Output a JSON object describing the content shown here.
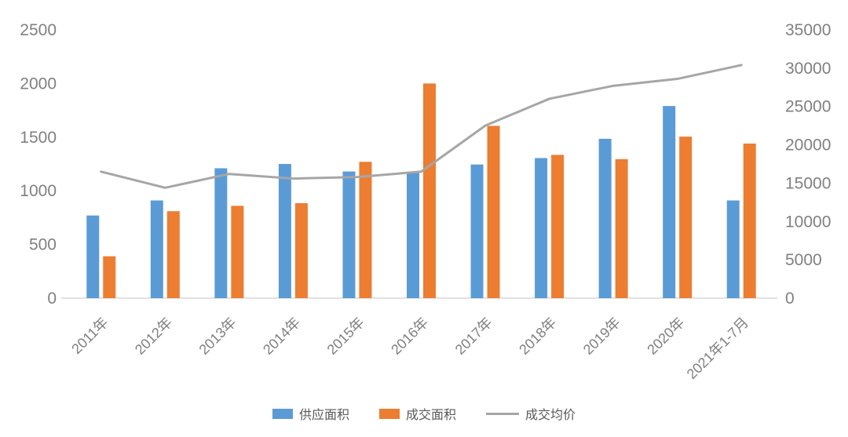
{
  "chart_data": {
    "type": "bar",
    "title": "",
    "xlabel": "",
    "ylabel": "",
    "categories": [
      "2011年",
      "2012年",
      "2013年",
      "2014年",
      "2015年",
      "2016年",
      "2017年",
      "2018年",
      "2019年",
      "2020年",
      "2021年1-7月"
    ],
    "series": [
      {
        "name": "供应面积",
        "type": "bar",
        "axis": "left",
        "color": "#5B9BD5",
        "values": [
          770,
          910,
          1210,
          1250,
          1180,
          1175,
          1245,
          1305,
          1485,
          1790,
          910
        ]
      },
      {
        "name": "成交面积",
        "type": "bar",
        "axis": "left",
        "color": "#ED7D31",
        "values": [
          390,
          810,
          860,
          885,
          1270,
          2000,
          1605,
          1335,
          1295,
          1505,
          1440
        ]
      },
      {
        "name": "成交均价",
        "type": "line",
        "axis": "right",
        "color": "#A6A6A6",
        "values": [
          16500,
          14400,
          16200,
          15600,
          15800,
          16500,
          22500,
          26000,
          27700,
          28600,
          30400
        ]
      }
    ],
    "left_axis": {
      "min": 0,
      "max": 2500,
      "ticks": [
        0,
        500,
        1000,
        1500,
        2000,
        2500
      ]
    },
    "right_axis": {
      "min": 0,
      "max": 35000,
      "ticks": [
        0,
        5000,
        10000,
        15000,
        20000,
        25000,
        30000,
        35000
      ]
    },
    "grid": false,
    "legend_position": "bottom",
    "colors": {
      "axis_text": "#808080",
      "axis_line": "#D9D9D9"
    }
  }
}
